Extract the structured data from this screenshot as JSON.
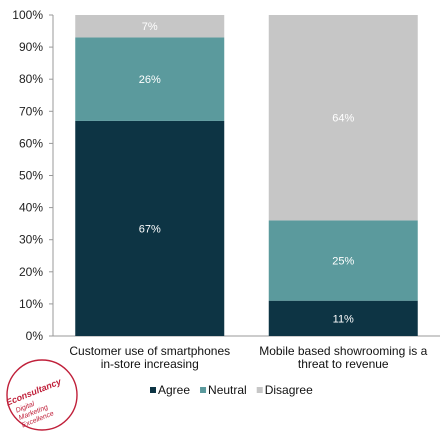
{
  "chart_data": {
    "type": "bar",
    "stacked": true,
    "categories": [
      "Customer use of smartphones in-store increasing",
      "Mobile based showrooming is a threat to revenue"
    ],
    "category_lines": [
      [
        "Customer use of smartphones",
        "in-store increasing"
      ],
      [
        "Mobile based showrooming is a",
        "threat to revenue"
      ]
    ],
    "series": [
      {
        "name": "Agree",
        "values": [
          67,
          11
        ],
        "labels": [
          "67%",
          "11%"
        ],
        "color": "#0d3444"
      },
      {
        "name": "Neutral",
        "values": [
          26,
          25
        ],
        "labels": [
          "26%",
          "25%"
        ],
        "color": "#5b9a9d"
      },
      {
        "name": "Disagree",
        "values": [
          7,
          64
        ],
        "labels": [
          "7%",
          "64%"
        ],
        "color": "#c6c6c6"
      }
    ],
    "yticks": [
      "0%",
      "10%",
      "20%",
      "30%",
      "40%",
      "50%",
      "60%",
      "70%",
      "80%",
      "90%",
      "100%"
    ],
    "ylim": [
      0,
      100
    ],
    "grid": false,
    "legend_position": "bottom"
  },
  "logo": {
    "brand": "Econsultancy",
    "tagline": [
      "Digital",
      "Marketing",
      "Excellence"
    ]
  },
  "colors": {
    "axis": "#999999",
    "logo_red": "#c0203a"
  }
}
